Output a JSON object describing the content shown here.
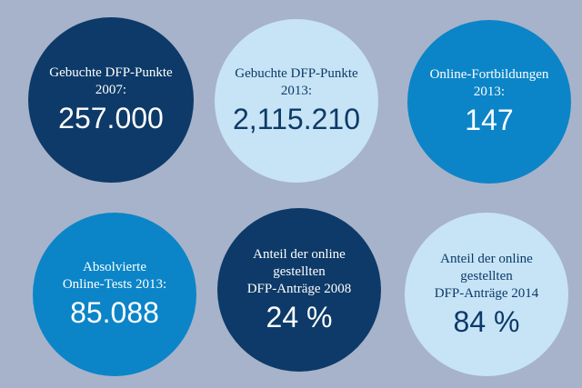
{
  "stats": [
    {
      "label": "Gebuchte DFP-Punkte 2007:",
      "value": "257.000"
    },
    {
      "label": "Gebuchte DFP-Punkte 2013:",
      "value": "2,115.210"
    },
    {
      "label": "Online-Fortbildungen 2013:",
      "value": "147"
    },
    {
      "label_line1": "Absolvierte",
      "label_line2": "Online-Tests 2013:",
      "value": "85.088"
    },
    {
      "label_line1": "Anteil der online gestellten",
      "label_line2": "DFP-Anträge 2008",
      "value": "24 %"
    },
    {
      "label_line1": "Anteil der online gestellten",
      "label_line2": "DFP-Anträge 2014",
      "value": "84 %"
    }
  ],
  "colors": {
    "background": "#a7b3ca",
    "dark_navy": "#0d3a68",
    "light_blue": "#c7e4f6",
    "medium_blue": "#0b85c8"
  }
}
